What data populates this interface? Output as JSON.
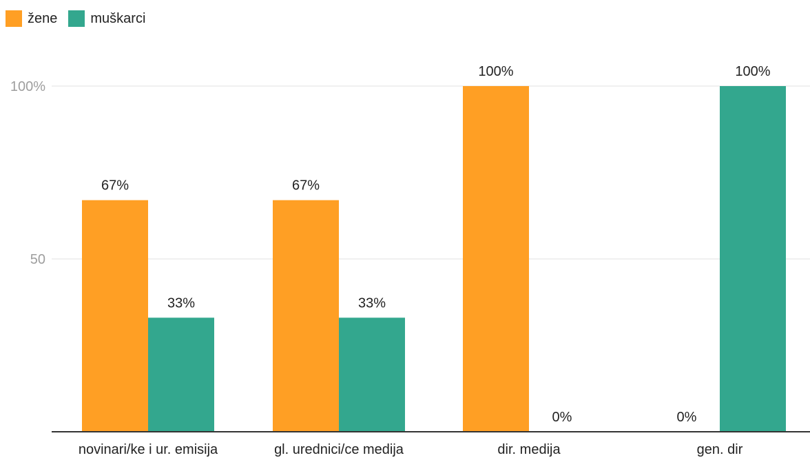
{
  "chart_data": {
    "type": "bar",
    "categories": [
      "novinari/ke i ur. emisija",
      "gl. urednici/ce medija",
      "dir. medija",
      "gen. dir"
    ],
    "series": [
      {
        "name": "žene",
        "values": [
          67,
          67,
          100,
          0
        ],
        "labels": [
          "67%",
          "67%",
          "100%",
          "0%"
        ],
        "color": "#FF9F24"
      },
      {
        "name": "muškarci",
        "values": [
          33,
          33,
          0,
          100
        ],
        "labels": [
          "33%",
          "33%",
          "0%",
          "100%"
        ],
        "color": "#33A78E"
      }
    ],
    "yticks": [
      {
        "value": 50,
        "label": "50"
      },
      {
        "value": 100,
        "label": "100%"
      }
    ],
    "ylim": [
      0,
      100
    ],
    "grid": true,
    "legend_position": "top-left",
    "xlabel": "",
    "ylabel": ""
  }
}
